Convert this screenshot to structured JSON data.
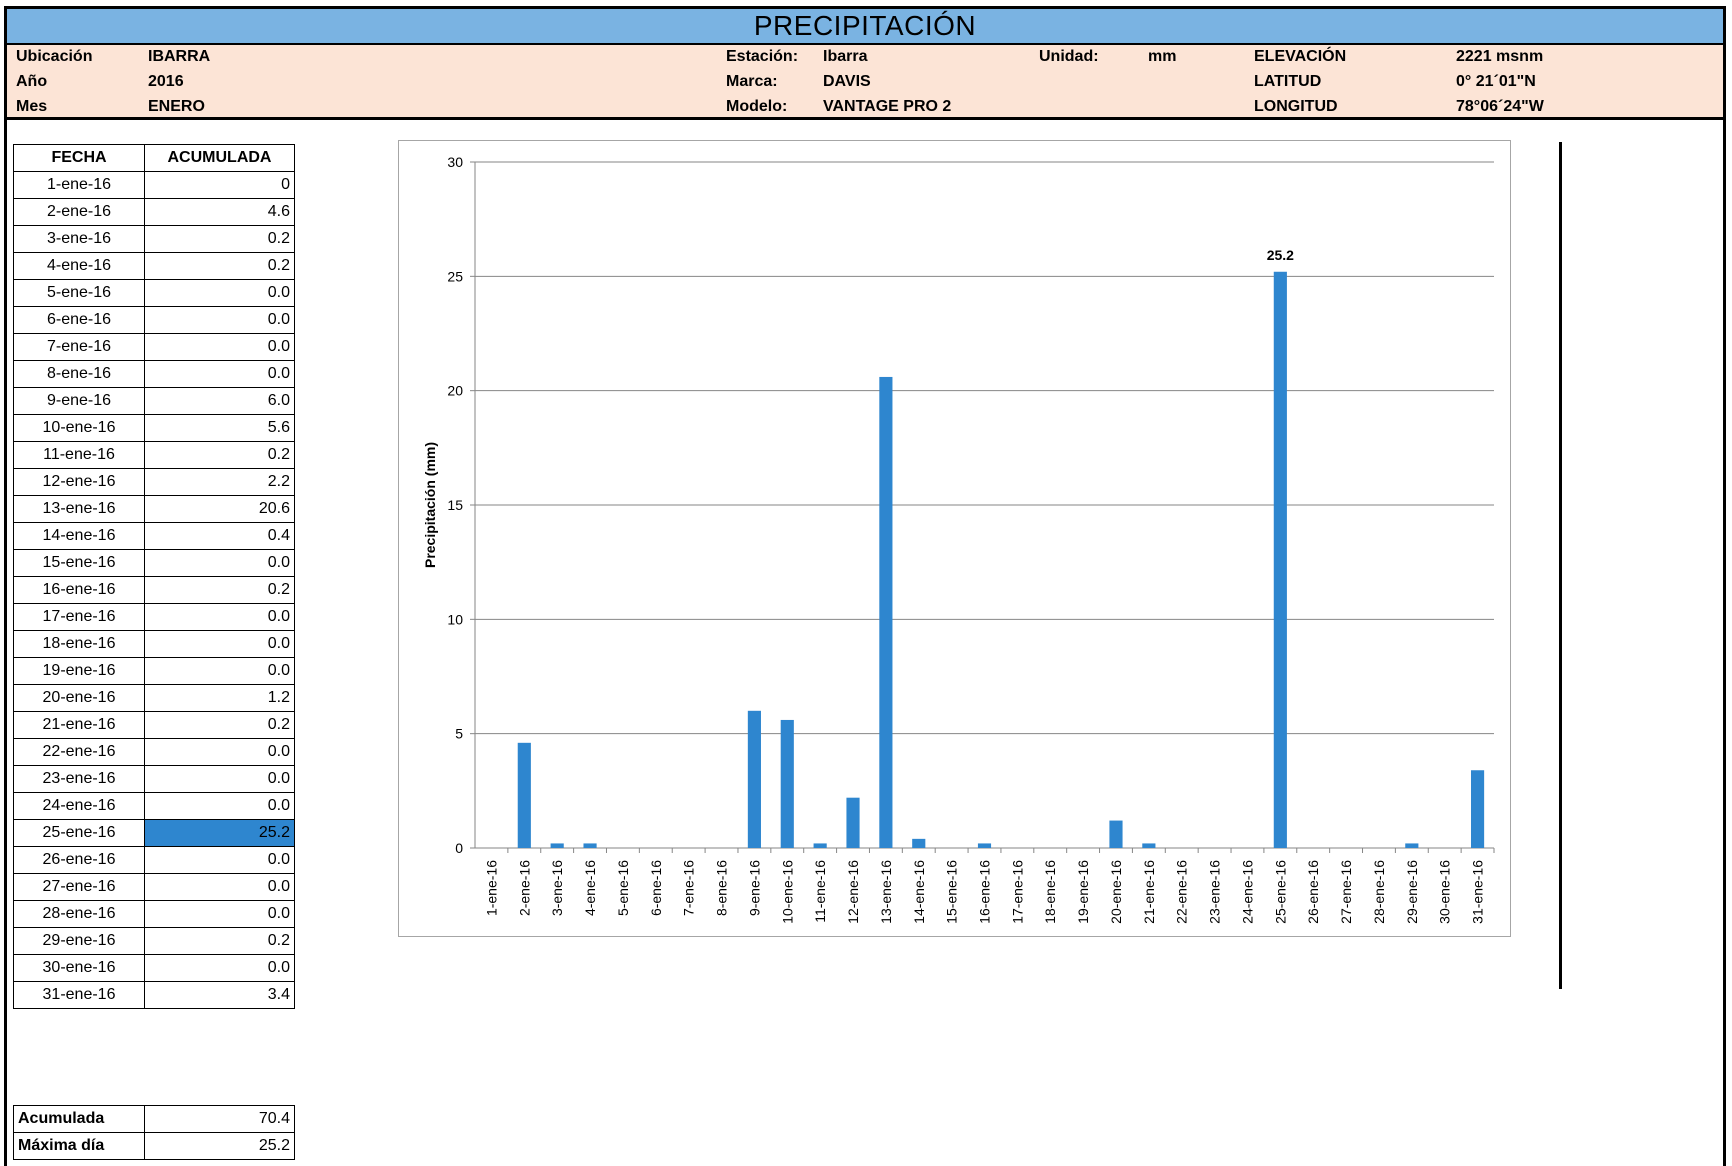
{
  "title": "PRECIPITACIÓN",
  "info": {
    "ubicacion_label": "Ubicación",
    "ubicacion": "IBARRA",
    "anio_label": "Año",
    "anio": "2016",
    "mes_label": "Mes",
    "mes": "ENERO",
    "estacion_label": "Estación:",
    "estacion": "Ibarra",
    "marca_label": "Marca:",
    "marca": "DAVIS",
    "modelo_label": "Modelo:",
    "modelo": "VANTAGE PRO 2",
    "unidad_label": "Unidad:",
    "unidad": "mm",
    "elevacion_label": "ELEVACIÓN",
    "elevacion": "2221 msnm",
    "latitud_label": "LATITUD",
    "latitud": "0° 21´01\"N",
    "longitud_label": "LONGITUD",
    "longitud": "78°06´24\"W"
  },
  "table": {
    "headers": [
      "FECHA",
      "ACUMULADA"
    ],
    "rows": [
      [
        "1-ene-16",
        "0"
      ],
      [
        "2-ene-16",
        "4.6"
      ],
      [
        "3-ene-16",
        "0.2"
      ],
      [
        "4-ene-16",
        "0.2"
      ],
      [
        "5-ene-16",
        "0.0"
      ],
      [
        "6-ene-16",
        "0.0"
      ],
      [
        "7-ene-16",
        "0.0"
      ],
      [
        "8-ene-16",
        "0.0"
      ],
      [
        "9-ene-16",
        "6.0"
      ],
      [
        "10-ene-16",
        "5.6"
      ],
      [
        "11-ene-16",
        "0.2"
      ],
      [
        "12-ene-16",
        "2.2"
      ],
      [
        "13-ene-16",
        "20.6"
      ],
      [
        "14-ene-16",
        "0.4"
      ],
      [
        "15-ene-16",
        "0.0"
      ],
      [
        "16-ene-16",
        "0.2"
      ],
      [
        "17-ene-16",
        "0.0"
      ],
      [
        "18-ene-16",
        "0.0"
      ],
      [
        "19-ene-16",
        "0.0"
      ],
      [
        "20-ene-16",
        "1.2"
      ],
      [
        "21-ene-16",
        "0.2"
      ],
      [
        "22-ene-16",
        "0.0"
      ],
      [
        "23-ene-16",
        "0.0"
      ],
      [
        "24-ene-16",
        "0.0"
      ],
      [
        "25-ene-16",
        "25.2"
      ],
      [
        "26-ene-16",
        "0.0"
      ],
      [
        "27-ene-16",
        "0.0"
      ],
      [
        "28-ene-16",
        "0.0"
      ],
      [
        "29-ene-16",
        "0.2"
      ],
      [
        "30-ene-16",
        "0.0"
      ],
      [
        "31-ene-16",
        "3.4"
      ]
    ],
    "highlight_row": 24,
    "highlight_color": "#2e86cf"
  },
  "summary": [
    [
      "Acumulada",
      "70.4"
    ],
    [
      "Máxima día",
      "25.2"
    ]
  ],
  "colors": {
    "title_bar": "#7ab3e2",
    "info_band": "#fce4d6",
    "bar": "#2e86cf"
  },
  "chart_data": {
    "type": "bar",
    "categories": [
      "1-ene-16",
      "2-ene-16",
      "3-ene-16",
      "4-ene-16",
      "5-ene-16",
      "6-ene-16",
      "7-ene-16",
      "8-ene-16",
      "9-ene-16",
      "10-ene-16",
      "11-ene-16",
      "12-ene-16",
      "13-ene-16",
      "14-ene-16",
      "15-ene-16",
      "16-ene-16",
      "17-ene-16",
      "18-ene-16",
      "19-ene-16",
      "20-ene-16",
      "21-ene-16",
      "22-ene-16",
      "23-ene-16",
      "24-ene-16",
      "25-ene-16",
      "26-ene-16",
      "27-ene-16",
      "28-ene-16",
      "29-ene-16",
      "30-ene-16",
      "31-ene-16"
    ],
    "values": [
      0,
      4.6,
      0.2,
      0.2,
      0,
      0,
      0,
      0,
      6.0,
      5.6,
      0.2,
      2.2,
      20.6,
      0.4,
      0,
      0.2,
      0,
      0,
      0,
      1.2,
      0.2,
      0,
      0,
      0,
      25.2,
      0,
      0,
      0,
      0.2,
      0,
      3.4
    ],
    "ylabel": "Precipitación (mm)",
    "xlabel": "",
    "ylim": [
      0,
      30
    ],
    "yticks": [
      0,
      5,
      10,
      15,
      20,
      25,
      30
    ],
    "grid": true,
    "annotations": [
      {
        "category": "25-ene-16",
        "label": "25.2"
      }
    ]
  }
}
